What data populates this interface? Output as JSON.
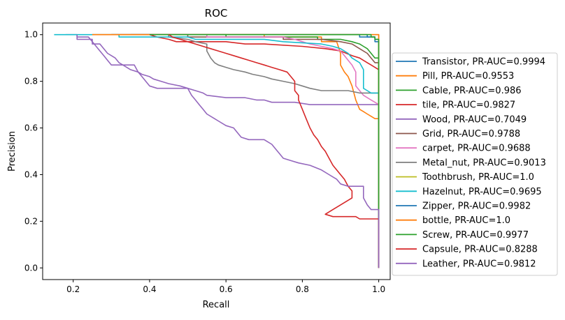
{
  "chart_data": {
    "type": "line",
    "title": "ROC",
    "xlabel": "Recall",
    "ylabel": "Precision",
    "xlim": [
      0.12,
      1.03
    ],
    "ylim": [
      -0.05,
      1.05
    ],
    "xticks": [
      "0.2",
      "0.4",
      "0.6",
      "0.8",
      "1.0"
    ],
    "xtick_values": [
      0.2,
      0.4,
      0.6,
      0.8,
      1.0
    ],
    "yticks": [
      "0.0",
      "0.2",
      "0.4",
      "0.6",
      "0.8",
      "1.0"
    ],
    "ytick_values": [
      0.0,
      0.2,
      0.4,
      0.6,
      0.8,
      1.0
    ],
    "grid": false,
    "legend_position": "center-right outside",
    "series": [
      {
        "name": "Transistor, PR-AUC=0.9994",
        "color": "#1f77b4",
        "points": [
          [
            0.3,
            1.0
          ],
          [
            0.95,
            1.0
          ],
          [
            0.95,
            0.99
          ],
          [
            0.99,
            0.99
          ],
          [
            0.99,
            0.97
          ],
          [
            1.0,
            0.97
          ],
          [
            1.0,
            0.0
          ]
        ]
      },
      {
        "name": "Pill, PR-AUC=0.9553",
        "color": "#ff7f0e",
        "points": [
          [
            0.25,
            1.0
          ],
          [
            0.7,
            1.0
          ],
          [
            0.7,
            0.99
          ],
          [
            0.85,
            0.99
          ],
          [
            0.85,
            0.97
          ],
          [
            0.89,
            0.97
          ],
          [
            0.9,
            0.92
          ],
          [
            0.9,
            0.87
          ],
          [
            0.91,
            0.84
          ],
          [
            0.92,
            0.82
          ],
          [
            0.93,
            0.78
          ],
          [
            0.94,
            0.72
          ],
          [
            0.95,
            0.68
          ],
          [
            0.96,
            0.67
          ],
          [
            0.97,
            0.66
          ],
          [
            0.98,
            0.65
          ],
          [
            0.99,
            0.64
          ],
          [
            1.0,
            0.64
          ],
          [
            1.0,
            0.0
          ]
        ]
      },
      {
        "name": "Cable, PR-AUC=0.986",
        "color": "#2ca02c",
        "points": [
          [
            0.42,
            1.0
          ],
          [
            0.6,
            1.0
          ],
          [
            0.6,
            0.99
          ],
          [
            0.84,
            0.99
          ],
          [
            0.84,
            0.98
          ],
          [
            0.9,
            0.98
          ],
          [
            0.93,
            0.97
          ],
          [
            0.95,
            0.96
          ],
          [
            0.96,
            0.95
          ],
          [
            0.97,
            0.94
          ],
          [
            0.98,
            0.92
          ],
          [
            0.99,
            0.9
          ],
          [
            1.0,
            0.9
          ],
          [
            1.0,
            0.0
          ]
        ]
      },
      {
        "name": "tile, PR-AUC=0.9827",
        "color": "#d62728",
        "points": [
          [
            0.4,
            1.0
          ],
          [
            0.42,
            0.99
          ],
          [
            0.45,
            0.98
          ],
          [
            0.47,
            0.97
          ],
          [
            0.5,
            0.97
          ],
          [
            0.6,
            0.97
          ],
          [
            0.65,
            0.96
          ],
          [
            0.7,
            0.96
          ],
          [
            0.8,
            0.95
          ],
          [
            0.86,
            0.94
          ],
          [
            0.9,
            0.93
          ],
          [
            0.93,
            0.91
          ],
          [
            0.95,
            0.9
          ],
          [
            0.97,
            0.88
          ],
          [
            0.98,
            0.87
          ],
          [
            1.0,
            0.85
          ],
          [
            1.0,
            0.0
          ]
        ]
      },
      {
        "name": "Wood, PR-AUC=0.7049",
        "color": "#9467bd",
        "points": [
          [
            0.18,
            1.0
          ],
          [
            0.21,
            1.0
          ],
          [
            0.21,
            0.98
          ],
          [
            0.25,
            0.98
          ],
          [
            0.25,
            0.96
          ],
          [
            0.27,
            0.96
          ],
          [
            0.29,
            0.92
          ],
          [
            0.3,
            0.91
          ],
          [
            0.31,
            0.9
          ],
          [
            0.32,
            0.88
          ],
          [
            0.33,
            0.87
          ],
          [
            0.34,
            0.86
          ],
          [
            0.35,
            0.85
          ],
          [
            0.37,
            0.84
          ],
          [
            0.38,
            0.83
          ],
          [
            0.4,
            0.82
          ],
          [
            0.41,
            0.81
          ],
          [
            0.43,
            0.8
          ],
          [
            0.45,
            0.79
          ],
          [
            0.48,
            0.78
          ],
          [
            0.5,
            0.77
          ],
          [
            0.52,
            0.76
          ],
          [
            0.54,
            0.75
          ],
          [
            0.55,
            0.74
          ],
          [
            0.6,
            0.73
          ],
          [
            0.65,
            0.73
          ],
          [
            0.68,
            0.72
          ],
          [
            0.7,
            0.72
          ],
          [
            0.72,
            0.71
          ],
          [
            0.75,
            0.71
          ],
          [
            0.78,
            0.71
          ],
          [
            0.82,
            0.7
          ],
          [
            0.86,
            0.7
          ],
          [
            0.9,
            0.7
          ],
          [
            0.93,
            0.7
          ],
          [
            0.96,
            0.7
          ],
          [
            1.0,
            0.7
          ],
          [
            1.0,
            0.0
          ]
        ]
      },
      {
        "name": "Grid, PR-AUC=0.9788",
        "color": "#8c564b",
        "points": [
          [
            0.3,
            1.0
          ],
          [
            0.5,
            1.0
          ],
          [
            0.5,
            0.99
          ],
          [
            0.75,
            0.99
          ],
          [
            0.75,
            0.98
          ],
          [
            0.85,
            0.98
          ],
          [
            0.9,
            0.97
          ],
          [
            0.93,
            0.96
          ],
          [
            0.95,
            0.94
          ],
          [
            0.97,
            0.92
          ],
          [
            0.98,
            0.9
          ],
          [
            0.99,
            0.88
          ],
          [
            1.0,
            0.88
          ],
          [
            1.0,
            0.0
          ]
        ]
      },
      {
        "name": "carpet, PR-AUC=0.9688",
        "color": "#e377c2",
        "points": [
          [
            0.35,
            1.0
          ],
          [
            0.55,
            1.0
          ],
          [
            0.55,
            0.99
          ],
          [
            0.75,
            0.99
          ],
          [
            0.78,
            0.98
          ],
          [
            0.8,
            0.97
          ],
          [
            0.82,
            0.96
          ],
          [
            0.85,
            0.95
          ],
          [
            0.88,
            0.94
          ],
          [
            0.9,
            0.93
          ],
          [
            0.91,
            0.91
          ],
          [
            0.92,
            0.89
          ],
          [
            0.93,
            0.87
          ],
          [
            0.94,
            0.84
          ],
          [
            0.94,
            0.78
          ],
          [
            0.95,
            0.76
          ],
          [
            0.96,
            0.74
          ],
          [
            0.97,
            0.73
          ],
          [
            0.98,
            0.72
          ],
          [
            0.99,
            0.71
          ],
          [
            1.0,
            0.7
          ],
          [
            1.0,
            0.0
          ]
        ]
      },
      {
        "name": "Metal_nut, PR-AUC=0.9013",
        "color": "#7f7f7f",
        "points": [
          [
            0.4,
            1.0
          ],
          [
            0.45,
            1.0
          ],
          [
            0.45,
            0.99
          ],
          [
            0.5,
            0.98
          ],
          [
            0.52,
            0.97
          ],
          [
            0.55,
            0.96
          ],
          [
            0.55,
            0.93
          ],
          [
            0.56,
            0.9
          ],
          [
            0.57,
            0.88
          ],
          [
            0.58,
            0.87
          ],
          [
            0.6,
            0.86
          ],
          [
            0.62,
            0.85
          ],
          [
            0.65,
            0.84
          ],
          [
            0.67,
            0.83
          ],
          [
            0.7,
            0.82
          ],
          [
            0.72,
            0.81
          ],
          [
            0.75,
            0.8
          ],
          [
            0.78,
            0.79
          ],
          [
            0.8,
            0.78
          ],
          [
            0.82,
            0.77
          ],
          [
            0.85,
            0.76
          ],
          [
            0.9,
            0.76
          ],
          [
            0.92,
            0.76
          ],
          [
            0.95,
            0.75
          ],
          [
            1.0,
            0.75
          ],
          [
            1.0,
            0.0
          ]
        ]
      },
      {
        "name": "Toothbrush, PR-AUC=1.0",
        "color": "#bcbd22",
        "points": [
          [
            0.35,
            1.0
          ],
          [
            1.0,
            1.0
          ],
          [
            1.0,
            0.0
          ]
        ]
      },
      {
        "name": "Hazelnut, PR-AUC=0.9695",
        "color": "#17becf",
        "points": [
          [
            0.15,
            1.0
          ],
          [
            0.32,
            1.0
          ],
          [
            0.32,
            0.99
          ],
          [
            0.5,
            0.99
          ],
          [
            0.52,
            0.98
          ],
          [
            0.7,
            0.98
          ],
          [
            0.75,
            0.97
          ],
          [
            0.85,
            0.96
          ],
          [
            0.88,
            0.95
          ],
          [
            0.9,
            0.94
          ],
          [
            0.92,
            0.92
          ],
          [
            0.93,
            0.9
          ],
          [
            0.95,
            0.88
          ],
          [
            0.96,
            0.85
          ],
          [
            0.96,
            0.77
          ],
          [
            0.97,
            0.76
          ],
          [
            0.98,
            0.75
          ],
          [
            1.0,
            0.75
          ],
          [
            1.0,
            0.0
          ]
        ]
      },
      {
        "name": "Zipper, PR-AUC=0.9982",
        "color": "#1f77b4",
        "points": [
          [
            0.35,
            1.0
          ],
          [
            0.97,
            1.0
          ],
          [
            0.97,
            0.99
          ],
          [
            0.99,
            0.99
          ],
          [
            0.99,
            0.98
          ],
          [
            1.0,
            0.98
          ],
          [
            1.0,
            0.0
          ]
        ]
      },
      {
        "name": "bottle, PR-AUC=1.0",
        "color": "#ff7f0e",
        "points": [
          [
            0.25,
            1.0
          ],
          [
            1.0,
            1.0
          ],
          [
            1.0,
            0.0
          ]
        ]
      },
      {
        "name": "Screw, PR-AUC=0.9977",
        "color": "#2ca02c",
        "points": [
          [
            0.4,
            1.0
          ],
          [
            0.98,
            1.0
          ],
          [
            0.98,
            0.99
          ],
          [
            0.99,
            0.99
          ],
          [
            0.99,
            0.98
          ],
          [
            1.0,
            0.98
          ],
          [
            1.0,
            0.0
          ]
        ]
      },
      {
        "name": "Capsule, PR-AUC=0.8288",
        "color": "#d62728",
        "points": [
          [
            0.45,
            1.0
          ],
          [
            0.46,
            0.99
          ],
          [
            0.48,
            0.98
          ],
          [
            0.5,
            0.97
          ],
          [
            0.52,
            0.96
          ],
          [
            0.54,
            0.95
          ],
          [
            0.56,
            0.94
          ],
          [
            0.58,
            0.93
          ],
          [
            0.6,
            0.92
          ],
          [
            0.62,
            0.91
          ],
          [
            0.64,
            0.9
          ],
          [
            0.66,
            0.89
          ],
          [
            0.68,
            0.88
          ],
          [
            0.7,
            0.87
          ],
          [
            0.72,
            0.86
          ],
          [
            0.74,
            0.85
          ],
          [
            0.76,
            0.84
          ],
          [
            0.77,
            0.82
          ],
          [
            0.78,
            0.8
          ],
          [
            0.78,
            0.76
          ],
          [
            0.79,
            0.74
          ],
          [
            0.79,
            0.72
          ],
          [
            0.8,
            0.68
          ],
          [
            0.81,
            0.64
          ],
          [
            0.82,
            0.6
          ],
          [
            0.83,
            0.57
          ],
          [
            0.84,
            0.55
          ],
          [
            0.85,
            0.52
          ],
          [
            0.86,
            0.5
          ],
          [
            0.87,
            0.47
          ],
          [
            0.88,
            0.44
          ],
          [
            0.89,
            0.42
          ],
          [
            0.9,
            0.4
          ],
          [
            0.91,
            0.38
          ],
          [
            0.92,
            0.35
          ],
          [
            0.93,
            0.33
          ],
          [
            0.93,
            0.3
          ],
          [
            0.9,
            0.27
          ],
          [
            0.88,
            0.25
          ],
          [
            0.86,
            0.23
          ],
          [
            0.88,
            0.22
          ],
          [
            0.94,
            0.22
          ],
          [
            0.95,
            0.21
          ],
          [
            1.0,
            0.21
          ],
          [
            1.0,
            0.0
          ]
        ]
      },
      {
        "name": "Leather, PR-AUC=0.9812",
        "color": "#9467bd",
        "points": [
          [
            0.21,
            1.0
          ],
          [
            0.21,
            0.99
          ],
          [
            0.24,
            0.99
          ],
          [
            0.25,
            0.97
          ],
          [
            0.26,
            0.95
          ],
          [
            0.27,
            0.93
          ],
          [
            0.28,
            0.91
          ],
          [
            0.29,
            0.89
          ],
          [
            0.3,
            0.87
          ],
          [
            0.32,
            0.87
          ],
          [
            0.36,
            0.87
          ],
          [
            0.37,
            0.84
          ],
          [
            0.38,
            0.82
          ],
          [
            0.39,
            0.8
          ],
          [
            0.4,
            0.78
          ],
          [
            0.42,
            0.77
          ],
          [
            0.5,
            0.77
          ],
          [
            0.51,
            0.74
          ],
          [
            0.52,
            0.72
          ],
          [
            0.53,
            0.7
          ],
          [
            0.54,
            0.68
          ],
          [
            0.55,
            0.66
          ],
          [
            0.57,
            0.64
          ],
          [
            0.58,
            0.63
          ],
          [
            0.6,
            0.61
          ],
          [
            0.62,
            0.6
          ],
          [
            0.63,
            0.58
          ],
          [
            0.64,
            0.56
          ],
          [
            0.66,
            0.55
          ],
          [
            0.7,
            0.55
          ],
          [
            0.72,
            0.53
          ],
          [
            0.73,
            0.51
          ],
          [
            0.74,
            0.49
          ],
          [
            0.75,
            0.47
          ],
          [
            0.77,
            0.46
          ],
          [
            0.79,
            0.45
          ],
          [
            0.82,
            0.44
          ],
          [
            0.85,
            0.42
          ],
          [
            0.87,
            0.4
          ],
          [
            0.89,
            0.38
          ],
          [
            0.9,
            0.36
          ],
          [
            0.92,
            0.35
          ],
          [
            0.96,
            0.35
          ],
          [
            0.96,
            0.3
          ],
          [
            0.97,
            0.27
          ],
          [
            0.98,
            0.25
          ],
          [
            1.0,
            0.25
          ],
          [
            1.0,
            0.0
          ]
        ]
      }
    ]
  }
}
